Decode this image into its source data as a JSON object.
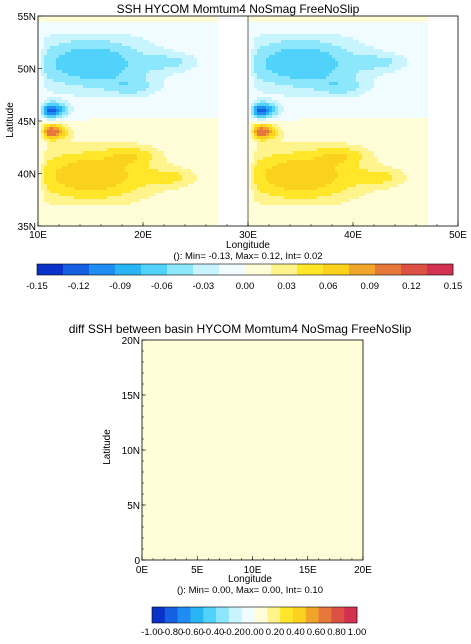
{
  "chart_data": [
    {
      "type": "heatmap",
      "title": "SSH HYCOM Momtum4 NoSmag FreeNoSlip",
      "xlabel": "Longitude",
      "ylabel": "Latitude",
      "subtitle": "(): Min= -0.13, Max= 0.12, Int= 0.02",
      "xlim": [
        10,
        50
      ],
      "ylim": [
        35,
        55
      ],
      "x_ticks": [
        "10E",
        "20E",
        "30E",
        "40E",
        "50E"
      ],
      "y_ticks": [
        "35N",
        "40N",
        "45N",
        "50N",
        "55N"
      ],
      "x_tick_values": [
        10,
        20,
        30,
        40,
        50
      ],
      "y_tick_values": [
        35,
        40,
        45,
        50,
        55
      ],
      "basins": [
        [
          10,
          30
        ],
        [
          30,
          50
        ]
      ],
      "field": {
        "min": -0.13,
        "max": 0.12,
        "interval": 0.02,
        "features": [
          {
            "lon": 1.3,
            "lat": 46.0,
            "value": -0.13
          },
          {
            "lon": 1.3,
            "lat": 44.0,
            "value": 0.12
          },
          {
            "lon": 3.5,
            "lat": 50.5,
            "value": -0.06
          },
          {
            "lon": 3.5,
            "lat": 40.0,
            "value": 0.06
          }
        ]
      },
      "colorbar": {
        "labels": [
          "-0.15",
          "-0.12",
          "-0.09",
          "-0.06",
          "-0.03",
          "0.00",
          "0.03",
          "0.06",
          "0.09",
          "0.12",
          "0.15"
        ],
        "min": -0.15,
        "max": 0.15
      }
    },
    {
      "type": "heatmap",
      "title": "diff SSH between basin HYCOM Momtum4 NoSmag FreeNoSlip",
      "xlabel": "Longitude",
      "ylabel": "Latitude",
      "subtitle": "(): Min= 0.00, Max= 0.00, Int= 0.10",
      "xlim": [
        0,
        20
      ],
      "ylim": [
        0,
        20
      ],
      "x_ticks": [
        "0E",
        "5E",
        "10E",
        "15E",
        "20E"
      ],
      "y_ticks": [
        "0",
        "5N",
        "10N",
        "15N",
        "20N"
      ],
      "x_tick_values": [
        0,
        5,
        10,
        15,
        20
      ],
      "y_tick_values": [
        0,
        5,
        10,
        15,
        20
      ],
      "field": {
        "min": 0.0,
        "max": 0.0,
        "interval": 0.1,
        "uniform_value": 0.0
      },
      "colorbar": {
        "labels": [
          "-1.00",
          "-0.80",
          "-0.60",
          "-0.40",
          "-0.20",
          "0.00",
          "0.20",
          "0.40",
          "0.60",
          "0.80",
          "1.00"
        ],
        "min": -1.0,
        "max": 1.0
      }
    }
  ],
  "palette": [
    "#0a32c8",
    "#1460e0",
    "#1e8cf0",
    "#28b4f5",
    "#50d2fa",
    "#8ce6fc",
    "#c8f4fd",
    "#f0fcff",
    "#fffdd8",
    "#fff48c",
    "#ffe628",
    "#fad21e",
    "#f0a528",
    "#e6783c",
    "#dc5046",
    "#d23250"
  ]
}
